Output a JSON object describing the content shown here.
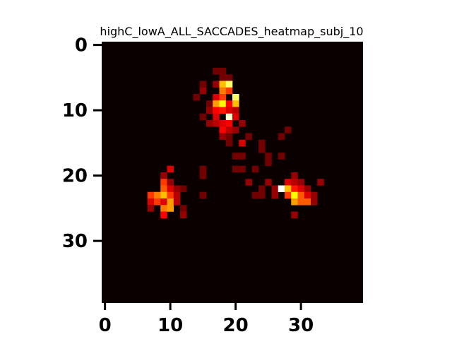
{
  "chart_data": {
    "type": "heatmap",
    "title": "highC_lowA_ALL_SACCADES_heatmap_subj_10",
    "xlabel": "",
    "ylabel": "",
    "grid": false,
    "xlim": [
      -0.5,
      39.5
    ],
    "ylim": [
      39.5,
      -0.5
    ],
    "x_ticks": [
      0,
      10,
      20,
      30
    ],
    "y_ticks": [
      0,
      10,
      20,
      30
    ],
    "shape": [
      40,
      40
    ],
    "colormap": "hot",
    "vmin": 0,
    "vmax": 1,
    "background_value": 0,
    "cells": [
      [
        17,
        4,
        0.15
      ],
      [
        18,
        4,
        0.15
      ],
      [
        18,
        5,
        0.15
      ],
      [
        19,
        5,
        0.15
      ],
      [
        15,
        6,
        0.15
      ],
      [
        17,
        6,
        0.2
      ],
      [
        18,
        6,
        0.65
      ],
      [
        19,
        6,
        0.85
      ],
      [
        15,
        7,
        0.2
      ],
      [
        18,
        7,
        0.55
      ],
      [
        19,
        7,
        0.45
      ],
      [
        14,
        8,
        0.15
      ],
      [
        17,
        8,
        0.3
      ],
      [
        18,
        8,
        0.45
      ],
      [
        20,
        8,
        0.85
      ],
      [
        16,
        9,
        0.15
      ],
      [
        17,
        9,
        0.6
      ],
      [
        18,
        9,
        0.75
      ],
      [
        19,
        9,
        0.35
      ],
      [
        20,
        9,
        0.65
      ],
      [
        16,
        10,
        0.2
      ],
      [
        17,
        10,
        0.35
      ],
      [
        18,
        10,
        0.4
      ],
      [
        19,
        10,
        0.3
      ],
      [
        20,
        10,
        0.25
      ],
      [
        15,
        11,
        0.15
      ],
      [
        17,
        11,
        0.3
      ],
      [
        19,
        11,
        0.95
      ],
      [
        20,
        11,
        0.3
      ],
      [
        16,
        12,
        0.2
      ],
      [
        17,
        12,
        0.25
      ],
      [
        18,
        12,
        0.3
      ],
      [
        19,
        12,
        0.35
      ],
      [
        21,
        12,
        0.2
      ],
      [
        18,
        13,
        0.35
      ],
      [
        19,
        13,
        0.25
      ],
      [
        20,
        13,
        0.2
      ],
      [
        18,
        14,
        0.2
      ],
      [
        19,
        14,
        0.15
      ],
      [
        22,
        14,
        0.15
      ],
      [
        27,
        14,
        0.15
      ],
      [
        19,
        15,
        0.15
      ],
      [
        21,
        15,
        0.3
      ],
      [
        24,
        15,
        0.15
      ],
      [
        28,
        13,
        0.15
      ],
      [
        24,
        16,
        0.15
      ],
      [
        20,
        17,
        0.15
      ],
      [
        21,
        17,
        0.15
      ],
      [
        25,
        17,
        0.15
      ],
      [
        27,
        17,
        0.15
      ],
      [
        25,
        18,
        0.15
      ],
      [
        10,
        19,
        0.3
      ],
      [
        15,
        19,
        0.15
      ],
      [
        20,
        19,
        0.15
      ],
      [
        21,
        19,
        0.15
      ],
      [
        23,
        19,
        0.15
      ],
      [
        9,
        20,
        0.2
      ],
      [
        15,
        20,
        0.15
      ],
      [
        29,
        20,
        0.2
      ],
      [
        9,
        21,
        0.45
      ],
      [
        10,
        21,
        0.2
      ],
      [
        22,
        21,
        0.2
      ],
      [
        25,
        21,
        0.2
      ],
      [
        28,
        21,
        0.3
      ],
      [
        29,
        21,
        0.25
      ],
      [
        30,
        21,
        0.2
      ],
      [
        33,
        21,
        0.2
      ],
      [
        9,
        22,
        0.5
      ],
      [
        10,
        22,
        0.3
      ],
      [
        11,
        22,
        0.2
      ],
      [
        12,
        22,
        0.15
      ],
      [
        24,
        22,
        0.15
      ],
      [
        26,
        22,
        0.2
      ],
      [
        27,
        22,
        1.0
      ],
      [
        28,
        22,
        0.65
      ],
      [
        29,
        22,
        0.4
      ],
      [
        30,
        22,
        0.3
      ],
      [
        31,
        22,
        0.2
      ],
      [
        7,
        23,
        0.45
      ],
      [
        8,
        23,
        0.55
      ],
      [
        9,
        23,
        0.65
      ],
      [
        10,
        23,
        0.45
      ],
      [
        11,
        23,
        0.25
      ],
      [
        15,
        23,
        0.15
      ],
      [
        23,
        23,
        0.15
      ],
      [
        24,
        23,
        0.15
      ],
      [
        26,
        23,
        0.2
      ],
      [
        28,
        23,
        0.45
      ],
      [
        29,
        23,
        0.75
      ],
      [
        30,
        23,
        0.5
      ],
      [
        31,
        23,
        0.3
      ],
      [
        32,
        23,
        0.2
      ],
      [
        7,
        24,
        0.3
      ],
      [
        8,
        24,
        0.45
      ],
      [
        9,
        24,
        0.3
      ],
      [
        10,
        24,
        0.6
      ],
      [
        11,
        24,
        0.25
      ],
      [
        29,
        24,
        0.6
      ],
      [
        30,
        24,
        0.5
      ],
      [
        31,
        24,
        0.5
      ],
      [
        32,
        24,
        0.2
      ],
      [
        7,
        25,
        0.2
      ],
      [
        9,
        25,
        0.55
      ],
      [
        10,
        25,
        0.6
      ],
      [
        12,
        25,
        0.15
      ],
      [
        9,
        26,
        0.35
      ],
      [
        12,
        26,
        0.2
      ],
      [
        29,
        26,
        0.2
      ]
    ]
  }
}
